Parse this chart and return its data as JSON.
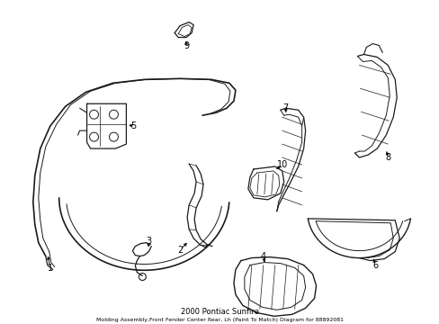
{
  "title": "2000 Pontiac Sunfire",
  "subtitle": "Molding Assembly,Front Fender Center Rear, Lh (Paint To Match) Diagram for 88892081",
  "background_color": "#ffffff",
  "line_color": "#1a1a1a",
  "label_color": "#000000",
  "fig_width": 4.89,
  "fig_height": 3.6,
  "font_size": 7.0
}
